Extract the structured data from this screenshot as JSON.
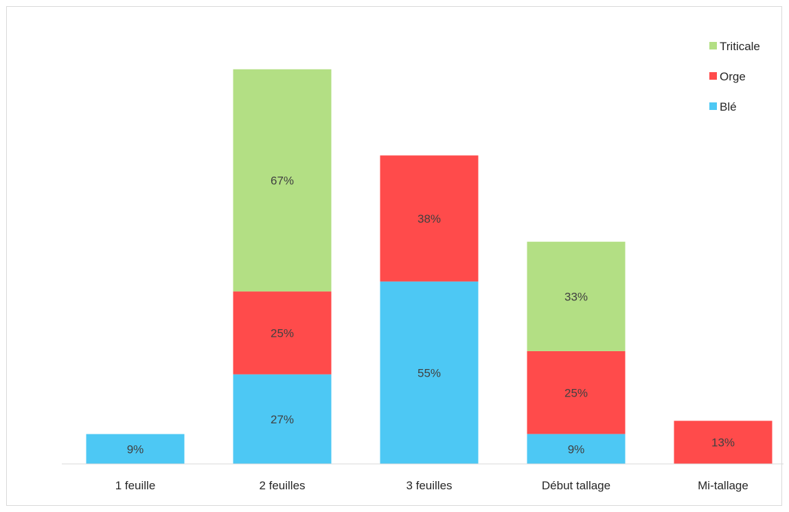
{
  "chart_data": {
    "type": "bar",
    "stacked": true,
    "categories": [
      "1 feuille",
      "2 feuilles",
      "3 feuilles",
      "Début tallage",
      "Mi-tallage"
    ],
    "series": [
      {
        "name": "Blé",
        "color": "#4dc8f4",
        "values": [
          9,
          27,
          55,
          9,
          null
        ]
      },
      {
        "name": "Orge",
        "color": "#ff4b4b",
        "values": [
          null,
          25,
          38,
          25,
          13
        ]
      },
      {
        "name": "Triticale",
        "color": "#b3df84",
        "values": [
          null,
          67,
          null,
          33,
          null
        ]
      }
    ],
    "value_suffix": "%",
    "ylim": [
      0,
      126
    ],
    "grid": false,
    "legend": "top-right"
  }
}
